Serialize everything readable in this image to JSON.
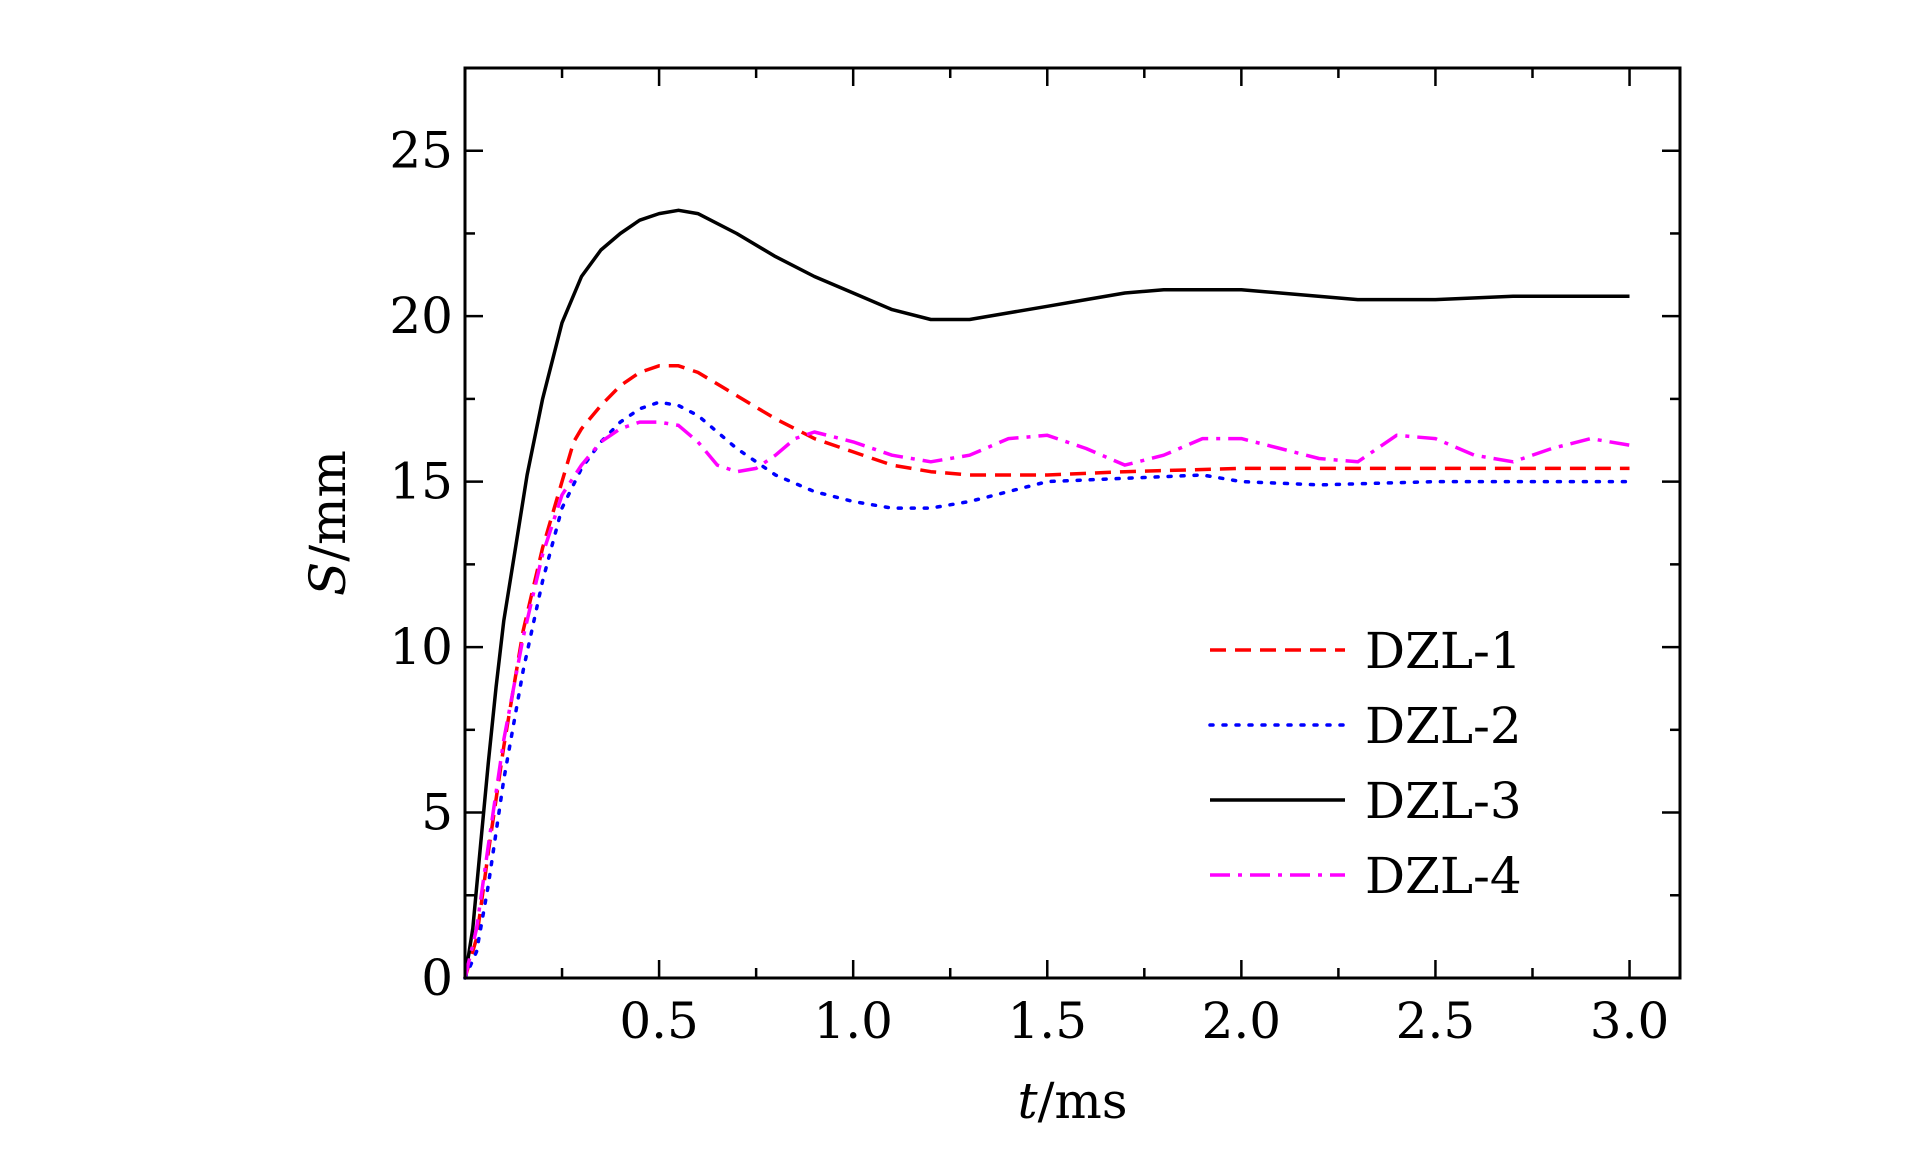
{
  "chart_data": {
    "type": "line",
    "title": "",
    "xlabel": {
      "var": "t",
      "unit": "/ms"
    },
    "ylabel": {
      "var": "S",
      "unit": "/mm"
    },
    "xlim": [
      0,
      3.13
    ],
    "ylim": [
      0,
      27.5
    ],
    "xticks": [
      0.5,
      1.0,
      1.5,
      2.0,
      2.5,
      3.0
    ],
    "xtick_labels": [
      "0.5",
      "1.0",
      "1.5",
      "2.0",
      "2.5",
      "3.0"
    ],
    "yticks": [
      0,
      5,
      10,
      15,
      20,
      25
    ],
    "ytick_labels": [
      "0",
      "5",
      "10",
      "15",
      "20",
      "25"
    ],
    "grid": false,
    "legend_position": "lower-right",
    "series": [
      {
        "name": "DZL-1",
        "color": "#ff0000",
        "style": "dashed",
        "points": [
          [
            0,
            0
          ],
          [
            0.03,
            1.2
          ],
          [
            0.06,
            3.8
          ],
          [
            0.1,
            7.0
          ],
          [
            0.15,
            10.5
          ],
          [
            0.2,
            13.0
          ],
          [
            0.25,
            15.0
          ],
          [
            0.28,
            16.2
          ],
          [
            0.3,
            16.6
          ],
          [
            0.35,
            17.3
          ],
          [
            0.4,
            17.9
          ],
          [
            0.45,
            18.3
          ],
          [
            0.5,
            18.5
          ],
          [
            0.55,
            18.5
          ],
          [
            0.6,
            18.3
          ],
          [
            0.7,
            17.6
          ],
          [
            0.8,
            16.9
          ],
          [
            0.9,
            16.3
          ],
          [
            1.0,
            15.9
          ],
          [
            1.1,
            15.5
          ],
          [
            1.2,
            15.3
          ],
          [
            1.3,
            15.2
          ],
          [
            1.5,
            15.2
          ],
          [
            1.7,
            15.3
          ],
          [
            2.0,
            15.4
          ],
          [
            2.5,
            15.4
          ],
          [
            3.0,
            15.4
          ]
        ]
      },
      {
        "name": "DZL-2",
        "color": "#0000ff",
        "style": "dotted",
        "points": [
          [
            0,
            0
          ],
          [
            0.03,
            0.8
          ],
          [
            0.06,
            2.8
          ],
          [
            0.1,
            6.0
          ],
          [
            0.15,
            9.3
          ],
          [
            0.2,
            12.0
          ],
          [
            0.25,
            14.2
          ],
          [
            0.3,
            15.4
          ],
          [
            0.35,
            16.2
          ],
          [
            0.4,
            16.8
          ],
          [
            0.45,
            17.2
          ],
          [
            0.5,
            17.4
          ],
          [
            0.55,
            17.3
          ],
          [
            0.6,
            17.0
          ],
          [
            0.7,
            16.0
          ],
          [
            0.8,
            15.2
          ],
          [
            0.9,
            14.7
          ],
          [
            1.0,
            14.4
          ],
          [
            1.1,
            14.2
          ],
          [
            1.2,
            14.2
          ],
          [
            1.3,
            14.4
          ],
          [
            1.4,
            14.7
          ],
          [
            1.5,
            15.0
          ],
          [
            1.7,
            15.1
          ],
          [
            1.9,
            15.2
          ],
          [
            2.0,
            15.0
          ],
          [
            2.2,
            14.9
          ],
          [
            2.5,
            15.0
          ],
          [
            2.8,
            15.0
          ],
          [
            3.0,
            15.0
          ]
        ]
      },
      {
        "name": "DZL-3",
        "color": "#000000",
        "style": "solid",
        "points": [
          [
            0,
            0
          ],
          [
            0.02,
            1.5
          ],
          [
            0.04,
            4.0
          ],
          [
            0.06,
            6.5
          ],
          [
            0.08,
            8.8
          ],
          [
            0.1,
            10.8
          ],
          [
            0.13,
            13.0
          ],
          [
            0.16,
            15.2
          ],
          [
            0.2,
            17.5
          ],
          [
            0.25,
            19.8
          ],
          [
            0.3,
            21.2
          ],
          [
            0.35,
            22.0
          ],
          [
            0.4,
            22.5
          ],
          [
            0.45,
            22.9
          ],
          [
            0.5,
            23.1
          ],
          [
            0.55,
            23.2
          ],
          [
            0.6,
            23.1
          ],
          [
            0.7,
            22.5
          ],
          [
            0.8,
            21.8
          ],
          [
            0.9,
            21.2
          ],
          [
            1.0,
            20.7
          ],
          [
            1.1,
            20.2
          ],
          [
            1.2,
            19.9
          ],
          [
            1.3,
            19.9
          ],
          [
            1.4,
            20.1
          ],
          [
            1.5,
            20.3
          ],
          [
            1.6,
            20.5
          ],
          [
            1.7,
            20.7
          ],
          [
            1.8,
            20.8
          ],
          [
            2.0,
            20.8
          ],
          [
            2.1,
            20.7
          ],
          [
            2.3,
            20.5
          ],
          [
            2.5,
            20.5
          ],
          [
            2.7,
            20.6
          ],
          [
            3.0,
            20.6
          ]
        ]
      },
      {
        "name": "DZL-4",
        "color": "#ff00ff",
        "style": "dashdot",
        "points": [
          [
            0,
            0
          ],
          [
            0.03,
            1.5
          ],
          [
            0.06,
            4.0
          ],
          [
            0.1,
            7.2
          ],
          [
            0.15,
            10.3
          ],
          [
            0.2,
            12.8
          ],
          [
            0.25,
            14.6
          ],
          [
            0.3,
            15.5
          ],
          [
            0.35,
            16.2
          ],
          [
            0.4,
            16.6
          ],
          [
            0.45,
            16.8
          ],
          [
            0.5,
            16.8
          ],
          [
            0.55,
            16.7
          ],
          [
            0.6,
            16.2
          ],
          [
            0.65,
            15.5
          ],
          [
            0.7,
            15.3
          ],
          [
            0.75,
            15.4
          ],
          [
            0.8,
            15.8
          ],
          [
            0.85,
            16.3
          ],
          [
            0.9,
            16.5
          ],
          [
            1.0,
            16.2
          ],
          [
            1.1,
            15.8
          ],
          [
            1.2,
            15.6
          ],
          [
            1.3,
            15.8
          ],
          [
            1.4,
            16.3
          ],
          [
            1.5,
            16.4
          ],
          [
            1.6,
            16.0
          ],
          [
            1.7,
            15.5
          ],
          [
            1.8,
            15.8
          ],
          [
            1.9,
            16.3
          ],
          [
            2.0,
            16.3
          ],
          [
            2.1,
            16.0
          ],
          [
            2.2,
            15.7
          ],
          [
            2.3,
            15.6
          ],
          [
            2.4,
            16.4
          ],
          [
            2.5,
            16.3
          ],
          [
            2.6,
            15.8
          ],
          [
            2.7,
            15.6
          ],
          [
            2.8,
            16.0
          ],
          [
            2.9,
            16.3
          ],
          [
            3.0,
            16.1
          ]
        ]
      }
    ]
  }
}
